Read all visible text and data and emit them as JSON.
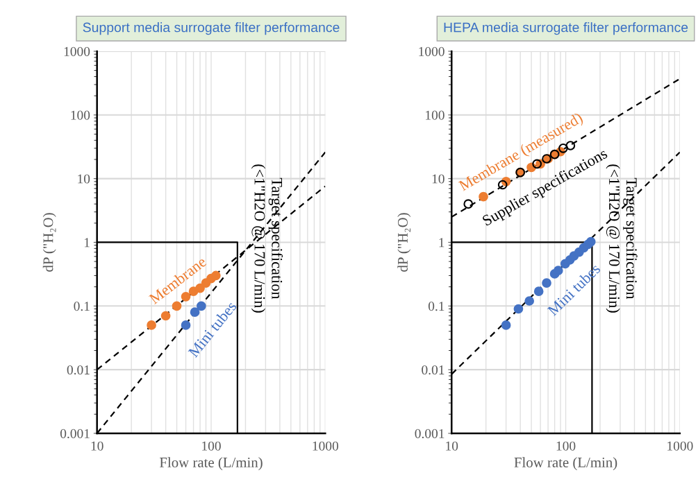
{
  "chart_data": [
    {
      "type": "scatter",
      "title": "Support media surrogate filter performance",
      "xlabel": "Flow rate (L/min)",
      "ylabel": "dP (\"H₂O)",
      "log": "xy",
      "xlim": [
        10,
        1000
      ],
      "ylim": [
        0.001,
        1000
      ],
      "xticks": [
        10,
        100,
        1000
      ],
      "yticks": [
        0.001,
        0.01,
        0.1,
        1,
        10,
        100,
        1000
      ],
      "grid": true,
      "series": [
        {
          "name": "Membrane",
          "color": "#ed7d31",
          "marker": "circle",
          "x": [
            30,
            40,
            50,
            60,
            70,
            80,
            90,
            100,
            110
          ],
          "values": [
            0.05,
            0.07,
            0.1,
            0.14,
            0.17,
            0.19,
            0.23,
            0.27,
            0.3
          ]
        },
        {
          "name": "Mini tubes",
          "color": "#4472c4",
          "marker": "circle",
          "x": [
            60,
            72,
            82
          ],
          "values": [
            0.05,
            0.08,
            0.1
          ]
        },
        {
          "type": "line",
          "color": "#000000",
          "line_style": "dashed",
          "x": [
            10,
            1000
          ],
          "values": [
            0.01,
            7.6
          ]
        },
        {
          "type": "line",
          "color": "#000000",
          "line_style": "dashed",
          "x": [
            10,
            1000
          ],
          "values": [
            0.001,
            26
          ]
        },
        {
          "type": "line",
          "color": "#000000",
          "line_style": "solid",
          "x": [
            10,
            170,
            170
          ],
          "values": [
            1,
            1,
            0.001
          ]
        }
      ],
      "annotations": [
        "Target specification\n(<1\"H2O @ 170 L/min)"
      ]
    },
    {
      "type": "scatter",
      "title": "HEPA media surrogate filter performance",
      "xlabel": "Flow rate (L/min)",
      "ylabel": "dP (\"H₂O)",
      "log": "xy",
      "xlim": [
        10,
        1000
      ],
      "ylim": [
        0.001,
        1000
      ],
      "xticks": [
        10,
        100,
        1000
      ],
      "yticks": [
        0.001,
        0.01,
        0.1,
        1,
        10,
        100,
        1000
      ],
      "grid": true,
      "series": [
        {
          "name": "Membrane (measured)",
          "color": "#ed7d31",
          "marker": "circle",
          "x": [
            19,
            30,
            40,
            50,
            60,
            70,
            80,
            90
          ],
          "values": [
            5.2,
            9,
            12.5,
            15,
            17,
            20.5,
            24,
            26.5
          ]
        },
        {
          "name": "Supplier specifications",
          "color": "#000000",
          "marker": "circle-open",
          "x": [
            14,
            28,
            40,
            56,
            68,
            80,
            95,
            110
          ],
          "values": [
            4,
            8,
            12.5,
            17,
            20.5,
            24,
            30,
            33
          ]
        },
        {
          "name": "Mini tubes",
          "color": "#4472c4",
          "marker": "circle",
          "x": [
            30,
            38.5,
            48,
            58,
            68,
            80,
            86,
            99,
            109,
            118,
            131,
            144,
            157,
            166
          ],
          "values": [
            0.05,
            0.09,
            0.12,
            0.17,
            0.23,
            0.32,
            0.36,
            0.46,
            0.53,
            0.61,
            0.7,
            0.82,
            0.93,
            1.02
          ]
        },
        {
          "type": "line",
          "color": "#000000",
          "line_style": "dashed",
          "x": [
            10,
            1000
          ],
          "values": [
            2.5,
            370
          ]
        },
        {
          "type": "line",
          "color": "#000000",
          "line_style": "dashed",
          "x": [
            10,
            1000
          ],
          "values": [
            0.0085,
            26
          ]
        },
        {
          "type": "line",
          "color": "#000000",
          "line_style": "solid",
          "x": [
            10,
            170,
            170
          ],
          "values": [
            1,
            1,
            0.001
          ]
        }
      ],
      "annotations": [
        "Target specification\n(<1\"H2O @ 170 L/min)"
      ]
    }
  ]
}
